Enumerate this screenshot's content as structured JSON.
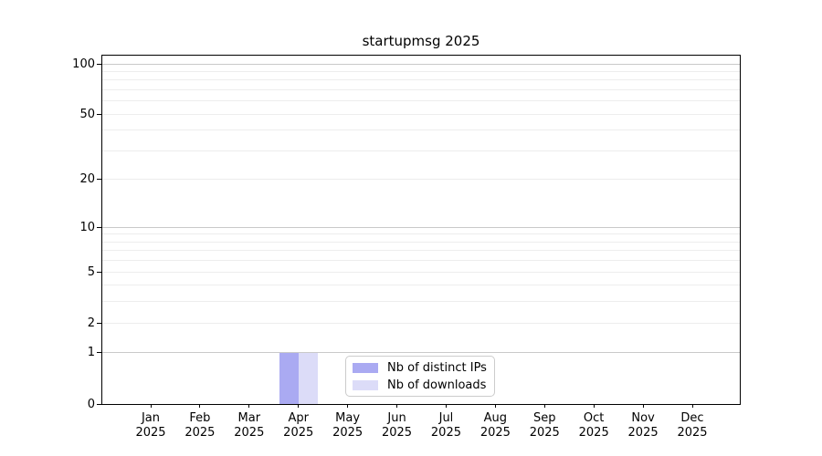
{
  "chart_data": {
    "type": "bar",
    "title": "startupmsg 2025",
    "categories": [
      {
        "month": "Jan",
        "year": "2025"
      },
      {
        "month": "Feb",
        "year": "2025"
      },
      {
        "month": "Mar",
        "year": "2025"
      },
      {
        "month": "Apr",
        "year": "2025"
      },
      {
        "month": "May",
        "year": "2025"
      },
      {
        "month": "Jun",
        "year": "2025"
      },
      {
        "month": "Jul",
        "year": "2025"
      },
      {
        "month": "Aug",
        "year": "2025"
      },
      {
        "month": "Sep",
        "year": "2025"
      },
      {
        "month": "Oct",
        "year": "2025"
      },
      {
        "month": "Nov",
        "year": "2025"
      },
      {
        "month": "Dec",
        "year": "2025"
      }
    ],
    "series": [
      {
        "name": "Nb of distinct IPs",
        "color": "#aaaaf2",
        "values": [
          0,
          0,
          0,
          1,
          0,
          0,
          0,
          0,
          0,
          0,
          0,
          0
        ]
      },
      {
        "name": "Nb of downloads",
        "color": "#dcdcf8",
        "values": [
          0,
          0,
          0,
          1,
          0,
          0,
          0,
          0,
          0,
          0,
          0,
          0
        ]
      }
    ],
    "xlabel": "",
    "ylabel": "",
    "yscale": "log1p",
    "ylim": [
      0,
      112
    ],
    "yticks": [
      0,
      1,
      2,
      5,
      10,
      20,
      50,
      100
    ],
    "yticks_minor": [
      2,
      3,
      4,
      5,
      6,
      7,
      8,
      9,
      20,
      30,
      40,
      50,
      60,
      70,
      80,
      90
    ],
    "yticks_major_grid": [
      1,
      10,
      100
    ],
    "grid": true,
    "legend_position": "lower center"
  }
}
